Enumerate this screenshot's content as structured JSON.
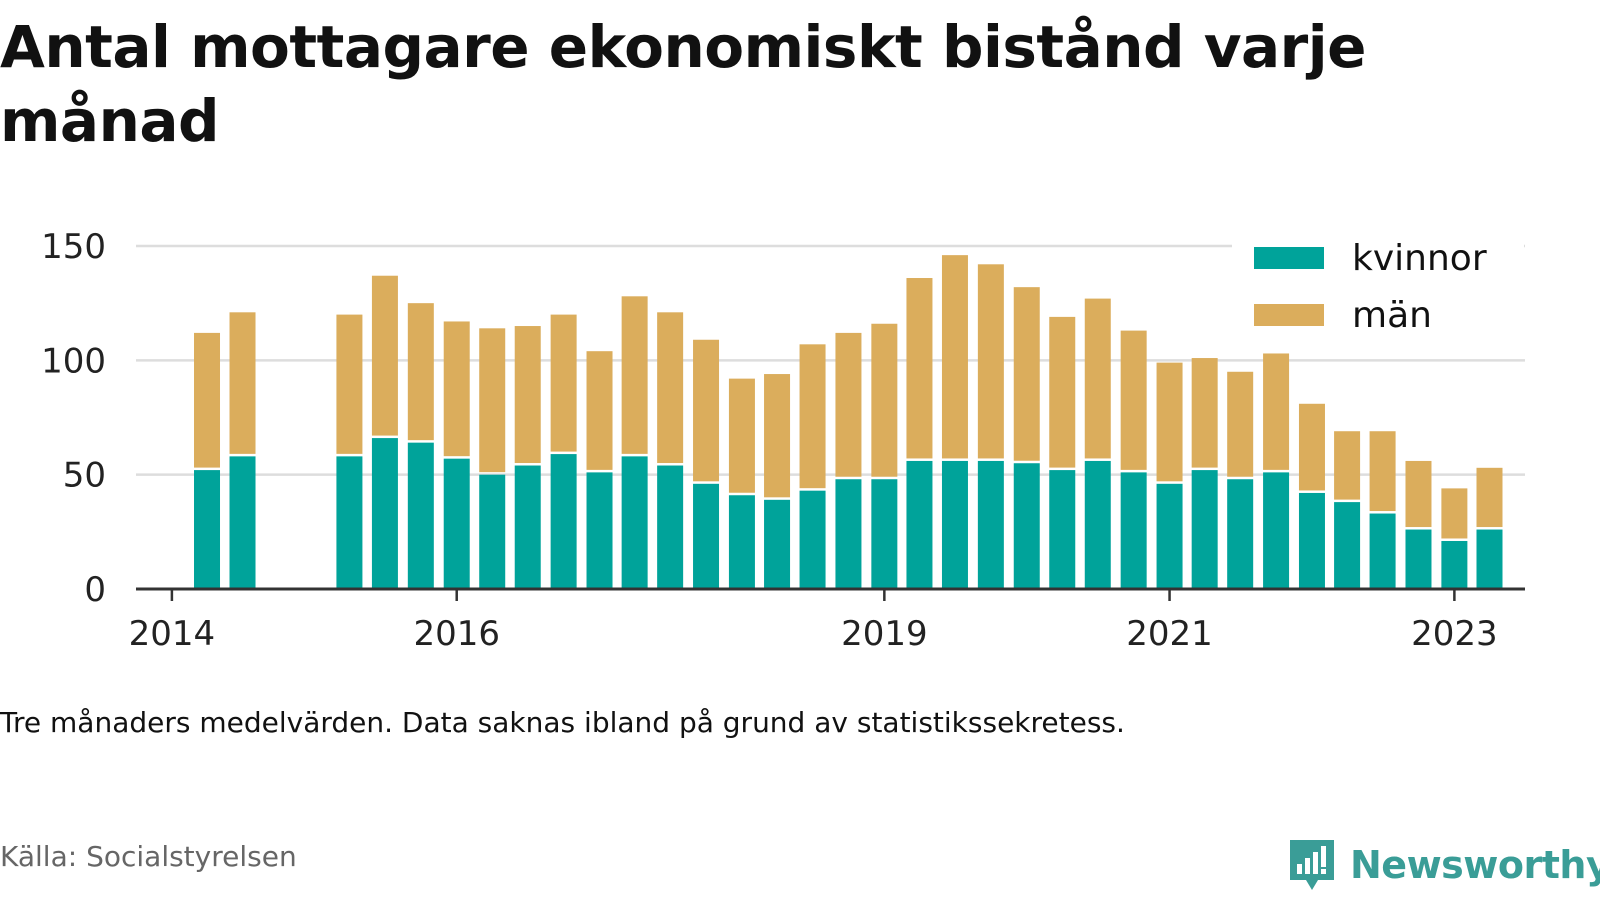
{
  "title": "Antal mottagare ekonomiskt bistånd varje månad",
  "note": "Tre månaders medelvärden. Data saknas ibland på grund av statistikssekretess.",
  "source": "Källa: Socialstyrelsen",
  "brand": "Newsworthy",
  "colors": {
    "kvinnor": "#00a39a",
    "man": "#dbad5c",
    "grid": "#dddddd",
    "axis": "#333333",
    "brand": "#3a9d97"
  },
  "chart_data": {
    "type": "bar",
    "stacked": true,
    "x_unit": "date",
    "xlim": [
      "2013-10-01",
      "2023-07-01"
    ],
    "ylim": [
      0,
      150
    ],
    "yticks": [
      0,
      50,
      100,
      150
    ],
    "xticks": [
      {
        "date": "2014-01-01",
        "label": "2014"
      },
      {
        "date": "2016-01-01",
        "label": "2016"
      },
      {
        "date": "2019-01-01",
        "label": "2019"
      },
      {
        "date": "2021-01-01",
        "label": "2021"
      },
      {
        "date": "2023-01-01",
        "label": "2023"
      }
    ],
    "grid": true,
    "legend_position": "top-right",
    "x": [
      "2014-04",
      "2014-07",
      "2015-04",
      "2015-07",
      "2015-10",
      "2016-01",
      "2016-04",
      "2016-07",
      "2016-10",
      "2017-01",
      "2017-04",
      "2017-07",
      "2017-10",
      "2018-01",
      "2018-04",
      "2018-07",
      "2018-10",
      "2019-01",
      "2019-04",
      "2019-07",
      "2019-10",
      "2020-01",
      "2020-04",
      "2020-07",
      "2020-10",
      "2021-01",
      "2021-04",
      "2021-07",
      "2021-10",
      "2022-01",
      "2022-04",
      "2022-07",
      "2022-10",
      "2023-01",
      "2023-04"
    ],
    "series": [
      {
        "name": "kvinnor",
        "values": [
          52,
          58,
          58,
          66,
          64,
          57,
          50,
          54,
          59,
          51,
          58,
          54,
          46,
          41,
          39,
          43,
          48,
          48,
          56,
          56,
          56,
          55,
          52,
          56,
          51,
          46,
          52,
          48,
          51,
          42,
          38,
          33,
          26,
          21,
          26
        ]
      },
      {
        "name": "män",
        "values": [
          60,
          63,
          62,
          71,
          61,
          60,
          64,
          61,
          61,
          53,
          70,
          67,
          63,
          51,
          55,
          64,
          64,
          68,
          80,
          90,
          86,
          77,
          67,
          71,
          62,
          53,
          49,
          47,
          52,
          39,
          31,
          36,
          30,
          23,
          27
        ]
      }
    ]
  }
}
